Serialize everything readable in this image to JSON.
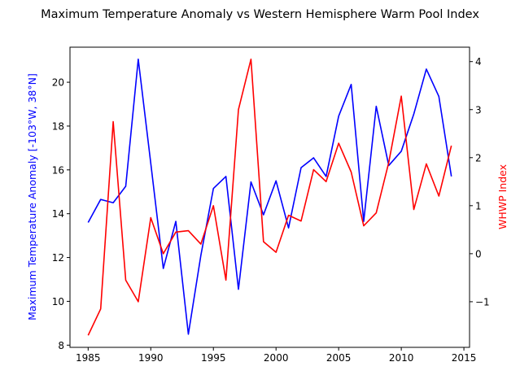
{
  "chart_data": {
    "type": "line",
    "title": "Maximum Temperature Anomaly vs Western Hemisphere Warm Pool Index",
    "x": [
      1985,
      1986,
      1987,
      1988,
      1989,
      1990,
      1991,
      1992,
      1993,
      1994,
      1995,
      1996,
      1997,
      1998,
      1999,
      2000,
      2001,
      2002,
      2003,
      2004,
      2005,
      2006,
      2007,
      2008,
      2009,
      2010,
      2011,
      2012,
      2013,
      2014
    ],
    "x_ticks": [
      1985,
      1990,
      1995,
      2000,
      2005,
      2010,
      2015
    ],
    "xlim": [
      1983.55,
      2015.45
    ],
    "left_axis": {
      "label": "Maximum Temperature Anomaly [-103°W, 38°N]",
      "color": "#0000ff",
      "ticks": [
        8,
        10,
        12,
        14,
        16,
        18,
        20
      ],
      "ylim": [
        7.9,
        21.6
      ]
    },
    "right_axis": {
      "label": "WHWP Index",
      "color": "#ff0000",
      "ticks": [
        -1,
        0,
        1,
        2,
        3,
        4
      ],
      "ylim": [
        -1.95,
        4.3
      ]
    },
    "series": [
      {
        "axis": "left",
        "color": "#0000ff",
        "values": [
          13.6,
          14.65,
          14.5,
          15.25,
          21.05,
          16.3,
          11.5,
          13.65,
          8.5,
          12.1,
          15.15,
          15.7,
          10.55,
          15.45,
          13.95,
          15.5,
          13.35,
          16.1,
          16.55,
          15.7,
          18.45,
          19.9,
          13.65,
          18.9,
          16.2,
          16.85,
          18.55,
          20.6,
          19.35,
          15.7
        ]
      },
      {
        "axis": "right",
        "color": "#ff0000",
        "values": [
          -1.7,
          -1.15,
          2.75,
          -0.55,
          -1.0,
          0.75,
          0.0,
          0.45,
          0.48,
          0.2,
          1.0,
          -0.55,
          3.0,
          4.05,
          0.25,
          0.03,
          0.8,
          0.68,
          1.75,
          1.5,
          2.3,
          1.7,
          0.58,
          0.85,
          1.9,
          3.28,
          0.92,
          1.87,
          1.2,
          2.25
        ]
      }
    ],
    "grid": false,
    "legend": "none"
  }
}
